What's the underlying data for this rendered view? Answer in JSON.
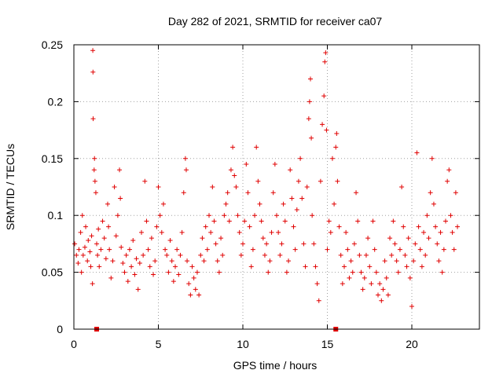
{
  "chart_data": {
    "type": "scatter",
    "title": "Day 282 of 2021, SRMTID for receiver ca07",
    "xlabel": "GPS time / hours",
    "ylabel": "SRMTID / TECUs",
    "xlim": [
      0,
      24
    ],
    "ylim": [
      0,
      0.25
    ],
    "x_ticks": [
      0,
      5,
      10,
      15,
      20
    ],
    "x_tick_labels": [
      "0",
      "5",
      "10",
      "15",
      "20"
    ],
    "y_ticks": [
      0,
      0.05,
      0.1,
      0.15,
      0.2,
      0.25
    ],
    "y_tick_labels": [
      "0",
      "0.05",
      "0.1",
      "0.15",
      "0.2",
      "0.25"
    ],
    "grid": true,
    "marker": "plus",
    "marker_color": "#e00000",
    "baseline_markers": [
      {
        "x": 1.35,
        "y": 0
      },
      {
        "x": 15.5,
        "y": 0
      }
    ],
    "series": [
      {
        "name": "SRMTID",
        "points": [
          [
            0.05,
            0.075
          ],
          [
            0.15,
            0.065
          ],
          [
            0.25,
            0.058
          ],
          [
            0.3,
            0.07
          ],
          [
            0.4,
            0.085
          ],
          [
            0.45,
            0.05
          ],
          [
            0.5,
            0.1
          ],
          [
            0.55,
            0.065
          ],
          [
            0.65,
            0.072
          ],
          [
            0.7,
            0.09
          ],
          [
            0.8,
            0.06
          ],
          [
            0.85,
            0.078
          ],
          [
            0.95,
            0.068
          ],
          [
            1.0,
            0.055
          ],
          [
            1.05,
            0.082
          ],
          [
            1.1,
            0.04
          ],
          [
            1.12,
            0.245
          ],
          [
            1.13,
            0.226
          ],
          [
            1.14,
            0.185
          ],
          [
            1.2,
            0.14
          ],
          [
            1.22,
            0.15
          ],
          [
            1.25,
            0.13
          ],
          [
            1.3,
            0.12
          ],
          [
            1.35,
            0.075
          ],
          [
            1.4,
            0.065
          ],
          [
            1.45,
            0.088
          ],
          [
            1.5,
            0.055
          ],
          [
            1.6,
            0.07
          ],
          [
            1.7,
            0.095
          ],
          [
            1.8,
            0.08
          ],
          [
            1.9,
            0.062
          ],
          [
            2.0,
            0.11
          ],
          [
            2.05,
            0.09
          ],
          [
            2.1,
            0.07
          ],
          [
            2.2,
            0.045
          ],
          [
            2.3,
            0.06
          ],
          [
            2.4,
            0.125
          ],
          [
            2.5,
            0.082
          ],
          [
            2.6,
            0.1
          ],
          [
            2.7,
            0.14
          ],
          [
            2.75,
            0.115
          ],
          [
            2.8,
            0.072
          ],
          [
            2.9,
            0.058
          ],
          [
            3.0,
            0.05
          ],
          [
            3.1,
            0.065
          ],
          [
            3.2,
            0.042
          ],
          [
            3.3,
            0.07
          ],
          [
            3.4,
            0.055
          ],
          [
            3.5,
            0.078
          ],
          [
            3.6,
            0.048
          ],
          [
            3.7,
            0.062
          ],
          [
            3.8,
            0.035
          ],
          [
            3.9,
            0.058
          ],
          [
            4.0,
            0.085
          ],
          [
            4.1,
            0.065
          ],
          [
            4.2,
            0.13
          ],
          [
            4.3,
            0.095
          ],
          [
            4.4,
            0.07
          ],
          [
            4.5,
            0.055
          ],
          [
            4.6,
            0.08
          ],
          [
            4.7,
            0.048
          ],
          [
            4.8,
            0.06
          ],
          [
            4.9,
            0.09
          ],
          [
            5.0,
            0.125
          ],
          [
            5.1,
            0.1
          ],
          [
            5.2,
            0.085
          ],
          [
            5.3,
            0.11
          ],
          [
            5.4,
            0.07
          ],
          [
            5.5,
            0.065
          ],
          [
            5.6,
            0.05
          ],
          [
            5.7,
            0.078
          ],
          [
            5.8,
            0.06
          ],
          [
            5.9,
            0.042
          ],
          [
            6.0,
            0.055
          ],
          [
            6.1,
            0.07
          ],
          [
            6.2,
            0.048
          ],
          [
            6.3,
            0.065
          ],
          [
            6.4,
            0.085
          ],
          [
            6.5,
            0.12
          ],
          [
            6.6,
            0.15
          ],
          [
            6.65,
            0.14
          ],
          [
            6.7,
            0.06
          ],
          [
            6.8,
            0.04
          ],
          [
            6.9,
            0.03
          ],
          [
            7.0,
            0.055
          ],
          [
            7.1,
            0.045
          ],
          [
            7.2,
            0.035
          ],
          [
            7.3,
            0.05
          ],
          [
            7.4,
            0.03
          ],
          [
            7.5,
            0.065
          ],
          [
            7.6,
            0.08
          ],
          [
            7.7,
            0.06
          ],
          [
            7.8,
            0.09
          ],
          [
            7.9,
            0.07
          ],
          [
            8.0,
            0.1
          ],
          [
            8.1,
            0.085
          ],
          [
            8.2,
            0.125
          ],
          [
            8.3,
            0.095
          ],
          [
            8.4,
            0.075
          ],
          [
            8.5,
            0.06
          ],
          [
            8.6,
            0.05
          ],
          [
            8.7,
            0.08
          ],
          [
            8.8,
            0.065
          ],
          [
            8.9,
            0.1
          ],
          [
            9.0,
            0.11
          ],
          [
            9.1,
            0.12
          ],
          [
            9.2,
            0.095
          ],
          [
            9.3,
            0.14
          ],
          [
            9.4,
            0.16
          ],
          [
            9.5,
            0.135
          ],
          [
            9.6,
            0.125
          ],
          [
            9.7,
            0.1
          ],
          [
            9.8,
            0.085
          ],
          [
            9.9,
            0.065
          ],
          [
            10.0,
            0.075
          ],
          [
            10.1,
            0.095
          ],
          [
            10.2,
            0.145
          ],
          [
            10.3,
            0.12
          ],
          [
            10.4,
            0.09
          ],
          [
            10.5,
            0.055
          ],
          [
            10.6,
            0.07
          ],
          [
            10.7,
            0.1
          ],
          [
            10.8,
            0.16
          ],
          [
            10.9,
            0.13
          ],
          [
            11.0,
            0.11
          ],
          [
            11.1,
            0.095
          ],
          [
            11.2,
            0.08
          ],
          [
            11.3,
            0.065
          ],
          [
            11.4,
            0.075
          ],
          [
            11.5,
            0.05
          ],
          [
            11.6,
            0.06
          ],
          [
            11.7,
            0.085
          ],
          [
            11.8,
            0.12
          ],
          [
            11.9,
            0.145
          ],
          [
            12.0,
            0.1
          ],
          [
            12.1,
            0.085
          ],
          [
            12.2,
            0.065
          ],
          [
            12.3,
            0.075
          ],
          [
            12.4,
            0.11
          ],
          [
            12.5,
            0.095
          ],
          [
            12.6,
            0.05
          ],
          [
            12.7,
            0.06
          ],
          [
            12.8,
            0.14
          ],
          [
            12.9,
            0.115
          ],
          [
            13.0,
            0.09
          ],
          [
            13.1,
            0.07
          ],
          [
            13.2,
            0.105
          ],
          [
            13.3,
            0.13
          ],
          [
            13.4,
            0.15
          ],
          [
            13.5,
            0.115
          ],
          [
            13.6,
            0.075
          ],
          [
            13.7,
            0.055
          ],
          [
            13.8,
            0.125
          ],
          [
            13.9,
            0.185
          ],
          [
            13.95,
            0.2
          ],
          [
            14.0,
            0.22
          ],
          [
            14.05,
            0.168
          ],
          [
            14.1,
            0.1
          ],
          [
            14.2,
            0.075
          ],
          [
            14.3,
            0.055
          ],
          [
            14.4,
            0.04
          ],
          [
            14.5,
            0.025
          ],
          [
            14.6,
            0.13
          ],
          [
            14.7,
            0.18
          ],
          [
            14.8,
            0.205
          ],
          [
            14.85,
            0.235
          ],
          [
            14.9,
            0.243
          ],
          [
            14.95,
            0.175
          ],
          [
            15.0,
            0.07
          ],
          [
            15.1,
            0.095
          ],
          [
            15.2,
            0.085
          ],
          [
            15.3,
            0.15
          ],
          [
            15.4,
            0.11
          ],
          [
            15.5,
            0.16
          ],
          [
            15.55,
            0.172
          ],
          [
            15.6,
            0.13
          ],
          [
            15.7,
            0.09
          ],
          [
            15.8,
            0.065
          ],
          [
            15.9,
            0.04
          ],
          [
            16.0,
            0.055
          ],
          [
            16.1,
            0.085
          ],
          [
            16.2,
            0.07
          ],
          [
            16.3,
            0.045
          ],
          [
            16.4,
            0.06
          ],
          [
            16.5,
            0.05
          ],
          [
            16.6,
            0.075
          ],
          [
            16.7,
            0.12
          ],
          [
            16.8,
            0.095
          ],
          [
            16.9,
            0.065
          ],
          [
            17.0,
            0.05
          ],
          [
            17.1,
            0.035
          ],
          [
            17.2,
            0.045
          ],
          [
            17.3,
            0.065
          ],
          [
            17.4,
            0.08
          ],
          [
            17.5,
            0.055
          ],
          [
            17.6,
            0.04
          ],
          [
            17.7,
            0.095
          ],
          [
            17.8,
            0.07
          ],
          [
            17.9,
            0.05
          ],
          [
            18.0,
            0.03
          ],
          [
            18.1,
            0.04
          ],
          [
            18.2,
            0.025
          ],
          [
            18.3,
            0.035
          ],
          [
            18.4,
            0.06
          ],
          [
            18.5,
            0.045
          ],
          [
            18.6,
            0.03
          ],
          [
            18.7,
            0.08
          ],
          [
            18.8,
            0.065
          ],
          [
            18.9,
            0.095
          ],
          [
            19.0,
            0.075
          ],
          [
            19.1,
            0.06
          ],
          [
            19.2,
            0.05
          ],
          [
            19.3,
            0.07
          ],
          [
            19.4,
            0.125
          ],
          [
            19.5,
            0.09
          ],
          [
            19.6,
            0.065
          ],
          [
            19.7,
            0.055
          ],
          [
            19.8,
            0.08
          ],
          [
            19.9,
            0.045
          ],
          [
            20.0,
            0.02
          ],
          [
            20.1,
            0.06
          ],
          [
            20.2,
            0.075
          ],
          [
            20.3,
            0.155
          ],
          [
            20.4,
            0.09
          ],
          [
            20.5,
            0.07
          ],
          [
            20.6,
            0.055
          ],
          [
            20.7,
            0.085
          ],
          [
            20.8,
            0.065
          ],
          [
            20.9,
            0.1
          ],
          [
            21.0,
            0.08
          ],
          [
            21.1,
            0.12
          ],
          [
            21.2,
            0.15
          ],
          [
            21.3,
            0.11
          ],
          [
            21.4,
            0.09
          ],
          [
            21.5,
            0.075
          ],
          [
            21.6,
            0.06
          ],
          [
            21.7,
            0.085
          ],
          [
            21.8,
            0.05
          ],
          [
            21.9,
            0.07
          ],
          [
            22.0,
            0.095
          ],
          [
            22.1,
            0.13
          ],
          [
            22.2,
            0.14
          ],
          [
            22.3,
            0.1
          ],
          [
            22.4,
            0.085
          ],
          [
            22.5,
            0.07
          ],
          [
            22.6,
            0.12
          ],
          [
            22.7,
            0.09
          ]
        ]
      }
    ]
  }
}
